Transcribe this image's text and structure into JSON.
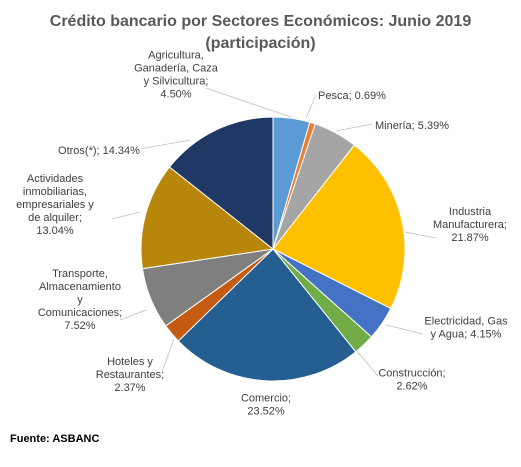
{
  "chart_data": {
    "type": "pie",
    "title": "Crédito bancario por Sectores Económicos: Junio 2019",
    "subtitle": "(participación)",
    "slices": [
      {
        "label": "Agricultura, Ganadería, Caza y Silvicultura",
        "value": 4.5,
        "display": [
          "Agricultura,",
          "Ganadería, Caza",
          "y Silvicultura;",
          "4.50%"
        ],
        "color": "#5b9bd5"
      },
      {
        "label": "Pesca",
        "value": 0.69,
        "display": [
          "Pesca; 0.69%"
        ],
        "color": "#ed7d31"
      },
      {
        "label": "Minería",
        "value": 5.39,
        "display": [
          "Minería; 5.39%"
        ],
        "color": "#a5a5a5"
      },
      {
        "label": "Industria Manufacturera",
        "value": 21.87,
        "display": [
          "Industria",
          "Manufacturera;",
          "21.87%"
        ],
        "color": "#ffc000"
      },
      {
        "label": "Electricidad, Gas y Agua",
        "value": 4.15,
        "display": [
          "Electricidad, Gas",
          "y Agua; 4.15%"
        ],
        "color": "#4472c4"
      },
      {
        "label": "Construcción",
        "value": 2.62,
        "display": [
          "Construcción;",
          "2.62%"
        ],
        "color": "#70ad47"
      },
      {
        "label": "Comercio",
        "value": 23.52,
        "display": [
          "Comercio;",
          "23.52%"
        ],
        "color": "#255e91"
      },
      {
        "label": "Hoteles y Restaurantes",
        "value": 2.37,
        "display": [
          "Hoteles y",
          "Restaurantes;",
          "2.37%"
        ],
        "color": "#c55a11"
      },
      {
        "label": "Transporte, Almacenamiento y Comunicaciones",
        "value": 7.52,
        "display": [
          "Transporte,",
          "Almacenamiento",
          "y",
          "Comunicaciones;",
          "7.52%"
        ],
        "color": "#7f7f7f"
      },
      {
        "label": "Actividades inmobiliarias, empresariales y de alquiler",
        "value": 13.04,
        "display": [
          "Actividades",
          "inmobiliarias,",
          "empresariales y",
          "de alquiler;",
          "13.04%"
        ],
        "color": "#b8860b"
      },
      {
        "label": "Otros(*)",
        "value": 14.34,
        "display": [
          "Otros(*); 14.34%"
        ],
        "color": "#1f3864"
      }
    ]
  },
  "source": "Fuente: ASBANC"
}
